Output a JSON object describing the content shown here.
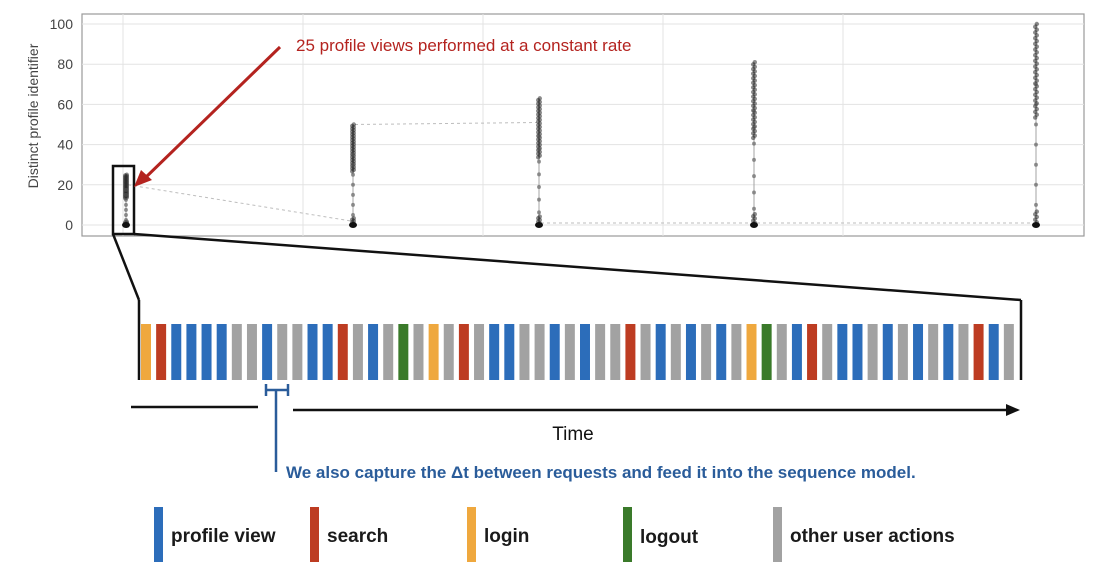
{
  "chart_data": {
    "type": "scatter",
    "title": "",
    "xlabel": "",
    "ylabel": "Distinct profile identifier",
    "ylim": [
      0,
      100
    ],
    "yticks": [
      0,
      20,
      40,
      60,
      80,
      100
    ],
    "grid": true,
    "annotation": "25 profile views performed at a constant rate",
    "bursts": [
      {
        "name": "burst-1",
        "y_range": [
          0,
          25
        ]
      },
      {
        "name": "burst-2",
        "y_range": [
          0,
          50
        ]
      },
      {
        "name": "burst-3",
        "y_range": [
          0,
          63
        ]
      },
      {
        "name": "burst-4",
        "y_range": [
          0,
          81
        ]
      },
      {
        "name": "burst-5",
        "y_range": [
          0,
          100
        ]
      }
    ]
  },
  "timeline": {
    "axis_label": "Time",
    "delta_note": "We also capture the Δt between requests and feed it into the sequence model.",
    "sequence": [
      "login",
      "search",
      "view",
      "view",
      "view",
      "view",
      "other",
      "other",
      "view",
      "other",
      "other",
      "view",
      "view",
      "search",
      "other",
      "view",
      "other",
      "logout",
      "other",
      "login",
      "other",
      "search",
      "other",
      "view",
      "view",
      "other",
      "other",
      "view",
      "other",
      "view",
      "other",
      "other",
      "search",
      "other",
      "view",
      "other",
      "view",
      "other",
      "view",
      "other",
      "login",
      "logout",
      "other",
      "view",
      "search",
      "other",
      "view",
      "view",
      "other",
      "view",
      "other",
      "view",
      "other",
      "view",
      "other",
      "search",
      "view",
      "other"
    ]
  },
  "legend": [
    {
      "key": "view",
      "label": "profile view",
      "color": "#2c6dba"
    },
    {
      "key": "search",
      "label": "search",
      "color": "#bd3c22"
    },
    {
      "key": "login",
      "label": "login",
      "color": "#efa83e"
    },
    {
      "key": "logout",
      "label": "logout",
      "color": "#3a7a2a"
    },
    {
      "key": "other",
      "label": "other user actions",
      "color": "#a2a2a2"
    }
  ]
}
